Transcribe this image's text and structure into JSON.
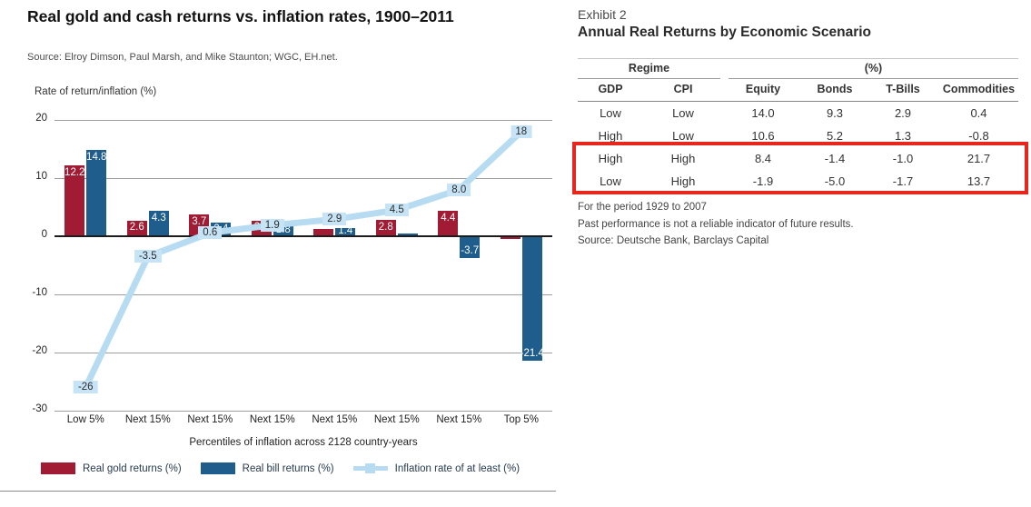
{
  "left_panel": {
    "title": "Real gold and cash returns vs. inflation rates, 1900–2011",
    "source": "Source: Elroy Dimson, Paul Marsh, and Mike Staunton; WGC, EH.net.",
    "y_axis_label": "Rate of return/inflation (%)",
    "x_axis_label": "Percentiles of inflation across 2128 country-years",
    "legend": [
      {
        "label": "Real gold returns (%)",
        "type": "bar",
        "color": "#a01b33"
      },
      {
        "label": "Real bill returns (%)",
        "type": "bar",
        "color": "#1f5d8c"
      },
      {
        "label": "Inflation rate of at least (%)",
        "type": "line",
        "color": "#b7dcf2"
      }
    ]
  },
  "chart_data": {
    "type": "bar",
    "subtype": "grouped-bars-with-line",
    "categories": [
      "Low 5%",
      "Next 15%",
      "Next 15%",
      "Next 15%",
      "Next 15%",
      "Next 15%",
      "Next 15%",
      "Top 5%"
    ],
    "series": [
      {
        "name": "Real gold returns (%)",
        "type": "bar",
        "color": "#a01b33",
        "values": [
          12.2,
          2.6,
          3.7,
          2.6,
          1.2,
          2.8,
          4.4,
          -0.5
        ],
        "labels": [
          "12.2",
          "2.6",
          "3.7",
          "2.6",
          "",
          "2.8",
          "4.4",
          ""
        ]
      },
      {
        "name": "Real bill returns (%)",
        "type": "bar",
        "color": "#1f5d8c",
        "values": [
          14.8,
          4.3,
          2.4,
          1.8,
          1.4,
          0.5,
          -3.7,
          -21.4
        ],
        "labels": [
          "14.8",
          "4.3",
          "2.4",
          "1.8",
          "1.4",
          "",
          "-3.7",
          "-21.4"
        ]
      },
      {
        "name": "Inflation rate of at least (%)",
        "type": "line",
        "color": "#b7dcf2",
        "values": [
          -26,
          -3.5,
          0.6,
          1.9,
          2.9,
          4.5,
          8.0,
          18
        ],
        "labels": [
          "-26",
          "-3.5",
          "0.6",
          "1.9",
          "2.9",
          "4.5",
          "8.0",
          "18"
        ]
      }
    ],
    "title": "Real gold and cash returns vs. inflation rates, 1900–2011",
    "xlabel": "Percentiles of inflation across 2128 country-years",
    "ylabel": "Rate of return/inflation (%)",
    "ylim": [
      -30,
      20
    ],
    "yticks": [
      20,
      10,
      0,
      -10,
      -20,
      -30
    ],
    "grid": true,
    "legend_position": "bottom",
    "point_label_bg": "#c6e4f6"
  },
  "right_panel": {
    "exhibit_label": "Exhibit 2",
    "title": "Annual Real Returns by Economic Scenario",
    "table": {
      "group_headers": [
        {
          "label": "Regime",
          "span": 2
        },
        {
          "label": "(%)",
          "span": 4
        }
      ],
      "columns": [
        "GDP",
        "CPI",
        "Equity",
        "Bonds",
        "T-Bills",
        "Commodities"
      ],
      "rows": [
        [
          "Low",
          "Low",
          "14.0",
          "9.3",
          "2.9",
          "0.4"
        ],
        [
          "High",
          "Low",
          "10.6",
          "5.2",
          "1.3",
          "-0.8"
        ],
        [
          "High",
          "High",
          "8.4",
          "-1.4",
          "-1.0",
          "21.7"
        ],
        [
          "Low",
          "High",
          "-1.9",
          "-5.0",
          "-1.7",
          "13.7"
        ]
      ],
      "highlighted_rows": [
        2,
        3
      ],
      "highlight_color": "#e7271e"
    },
    "footnotes": [
      "For the period 1929 to 2007",
      "Past performance is not a reliable indicator of future results.",
      "Source: Deutsche Bank, Barclays Capital"
    ]
  }
}
